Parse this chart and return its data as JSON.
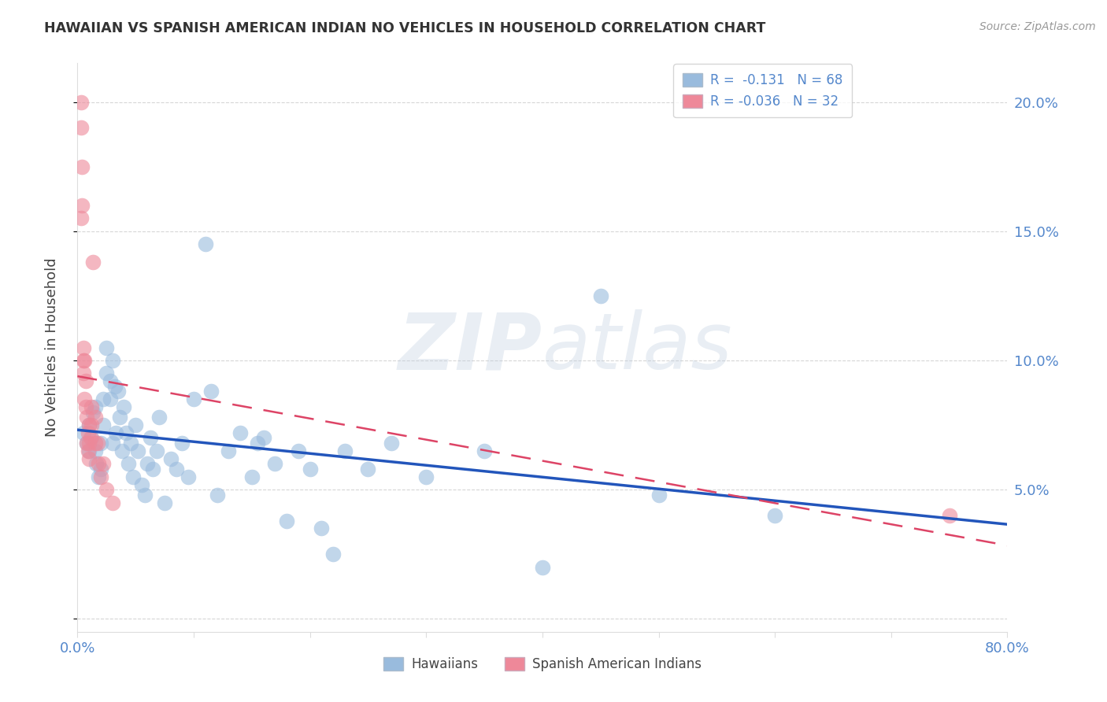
{
  "title": "HAWAIIAN VS SPANISH AMERICAN INDIAN NO VEHICLES IN HOUSEHOLD CORRELATION CHART",
  "source": "Source: ZipAtlas.com",
  "ylabel": "No Vehicles in Household",
  "yticks": [
    0.0,
    0.05,
    0.1,
    0.15,
    0.2
  ],
  "ytick_labels": [
    "",
    "5.0%",
    "10.0%",
    "15.0%",
    "20.0%"
  ],
  "xlim": [
    0.0,
    0.8
  ],
  "ylim": [
    -0.005,
    0.215
  ],
  "watermark_zip": "ZIP",
  "watermark_atlas": "atlas",
  "legend_R_N": [
    {
      "R": "-0.131",
      "N": "68"
    },
    {
      "R": "-0.036",
      "N": "32"
    }
  ],
  "hawaiians_x": [
    0.005,
    0.008,
    0.01,
    0.01,
    0.012,
    0.013,
    0.015,
    0.015,
    0.016,
    0.018,
    0.02,
    0.02,
    0.022,
    0.022,
    0.025,
    0.025,
    0.028,
    0.028,
    0.03,
    0.03,
    0.032,
    0.033,
    0.035,
    0.036,
    0.038,
    0.04,
    0.042,
    0.044,
    0.046,
    0.048,
    0.05,
    0.052,
    0.055,
    0.058,
    0.06,
    0.063,
    0.065,
    0.068,
    0.07,
    0.075,
    0.08,
    0.085,
    0.09,
    0.095,
    0.1,
    0.11,
    0.115,
    0.12,
    0.13,
    0.14,
    0.15,
    0.155,
    0.16,
    0.17,
    0.18,
    0.19,
    0.2,
    0.21,
    0.22,
    0.23,
    0.25,
    0.27,
    0.3,
    0.35,
    0.4,
    0.45,
    0.5,
    0.6
  ],
  "hawaiians_y": [
    0.072,
    0.068,
    0.075,
    0.065,
    0.07,
    0.08,
    0.065,
    0.082,
    0.06,
    0.055,
    0.068,
    0.058,
    0.075,
    0.085,
    0.095,
    0.105,
    0.085,
    0.092,
    0.1,
    0.068,
    0.09,
    0.072,
    0.088,
    0.078,
    0.065,
    0.082,
    0.072,
    0.06,
    0.068,
    0.055,
    0.075,
    0.065,
    0.052,
    0.048,
    0.06,
    0.07,
    0.058,
    0.065,
    0.078,
    0.045,
    0.062,
    0.058,
    0.068,
    0.055,
    0.085,
    0.145,
    0.088,
    0.048,
    0.065,
    0.072,
    0.055,
    0.068,
    0.07,
    0.06,
    0.038,
    0.065,
    0.058,
    0.035,
    0.025,
    0.065,
    0.058,
    0.068,
    0.055,
    0.065,
    0.02,
    0.125,
    0.048,
    0.04
  ],
  "spanish_x": [
    0.003,
    0.003,
    0.004,
    0.004,
    0.005,
    0.005,
    0.005,
    0.006,
    0.006,
    0.007,
    0.007,
    0.008,
    0.008,
    0.009,
    0.009,
    0.01,
    0.01,
    0.01,
    0.011,
    0.012,
    0.012,
    0.013,
    0.015,
    0.015,
    0.017,
    0.018,
    0.02,
    0.022,
    0.025,
    0.03,
    0.75,
    0.003
  ],
  "spanish_y": [
    0.19,
    0.2,
    0.175,
    0.16,
    0.1,
    0.105,
    0.095,
    0.1,
    0.085,
    0.092,
    0.082,
    0.078,
    0.068,
    0.065,
    0.072,
    0.068,
    0.062,
    0.075,
    0.07,
    0.075,
    0.082,
    0.138,
    0.068,
    0.078,
    0.068,
    0.06,
    0.055,
    0.06,
    0.05,
    0.045,
    0.04,
    0.155
  ],
  "blue_line_color": "#2255bb",
  "pink_line_color": "#dd4466",
  "blue_scatter_color": "#99bbdd",
  "pink_scatter_color": "#ee8899",
  "blue_scatter_edge": "#99bbdd",
  "pink_scatter_edge": "#ee8899",
  "grid_color": "#cccccc",
  "axis_label_color": "#5588cc",
  "title_color": "#333333",
  "background_color": "#ffffff"
}
